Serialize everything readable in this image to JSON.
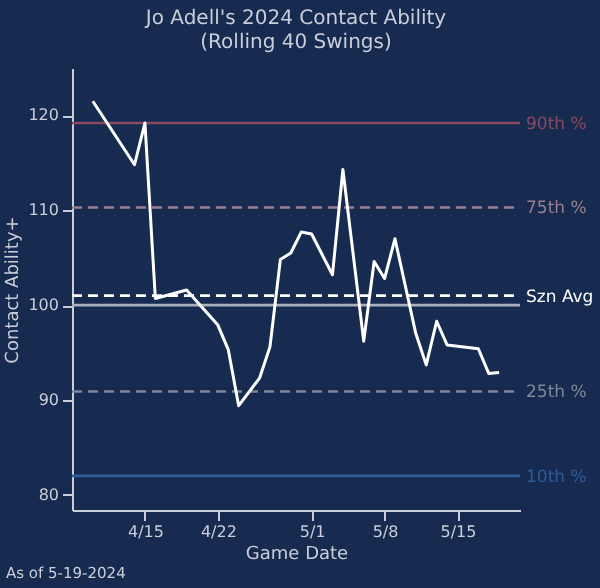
{
  "chart_data": {
    "type": "line",
    "title": "Jo Adell's 2024 Contact Ability",
    "subtitle": "(Rolling 40 Swings)",
    "xlabel": "Game Date",
    "ylabel": "Contact Ability+",
    "x": [
      "2024-04-10",
      "2024-04-14",
      "2024-04-15",
      "2024-04-16",
      "2024-04-19",
      "2024-04-22",
      "2024-04-23",
      "2024-04-24",
      "2024-04-26",
      "2024-04-27",
      "2024-04-28",
      "2024-04-29",
      "2024-04-30",
      "2024-05-01",
      "2024-05-03",
      "2024-05-04",
      "2024-05-06",
      "2024-05-07",
      "2024-05-08",
      "2024-05-09",
      "2024-05-11",
      "2024-05-12",
      "2024-05-13",
      "2024-05-14",
      "2024-05-17",
      "2024-05-18",
      "2024-05-19"
    ],
    "series": [
      {
        "color": "#ffffff",
        "values": [
          121.5,
          114.8,
          119.2,
          100.7,
          101.6,
          97.9,
          95.3,
          89.4,
          92.3,
          95.6,
          104.8,
          105.5,
          107.7,
          107.5,
          103.2,
          114.3,
          96.2,
          104.6,
          102.8,
          107.0,
          97.0,
          93.7,
          98.3,
          95.8,
          95.4,
          92.8,
          92.9
        ]
      }
    ],
    "xlim": [
      "2024-04-08",
      "2024-05-21"
    ],
    "xticks": [
      {
        "value": "2024-04-15",
        "label": "4/15"
      },
      {
        "value": "2024-04-22",
        "label": "4/22"
      },
      {
        "value": "2024-05-01",
        "label": "5/1"
      },
      {
        "value": "2024-05-08",
        "label": "5/8"
      },
      {
        "value": "2024-05-15",
        "label": "5/15"
      }
    ],
    "ylim": [
      78.4,
      125
    ],
    "yticks": [
      80,
      90,
      100,
      110,
      120
    ],
    "grid": false,
    "marker": "none",
    "line_style": "solid",
    "ref_lines": [
      {
        "axis": "y",
        "value": 119.2,
        "label": "90th %",
        "color": "#8a4a62",
        "line_style": "solid"
      },
      {
        "axis": "y",
        "value": 110.3,
        "label": "75th %",
        "color": "#9a7f8e",
        "line_style": "dashed"
      },
      {
        "axis": "y",
        "value": 101,
        "label": "Szn Avg",
        "color": "#ffffff",
        "line_style": "dashed"
      },
      {
        "axis": "y",
        "value": 100,
        "label": null,
        "color": "#a9afbd",
        "line_style": "solid"
      },
      {
        "axis": "y",
        "value": 90.9,
        "label": "25th %",
        "color": "#7d8799",
        "line_style": "dashed"
      },
      {
        "axis": "y",
        "value": 82,
        "label": "10th %",
        "color": "#2f5b99",
        "line_style": "solid"
      }
    ],
    "annotations": [
      "As of 5-19-2024"
    ]
  }
}
